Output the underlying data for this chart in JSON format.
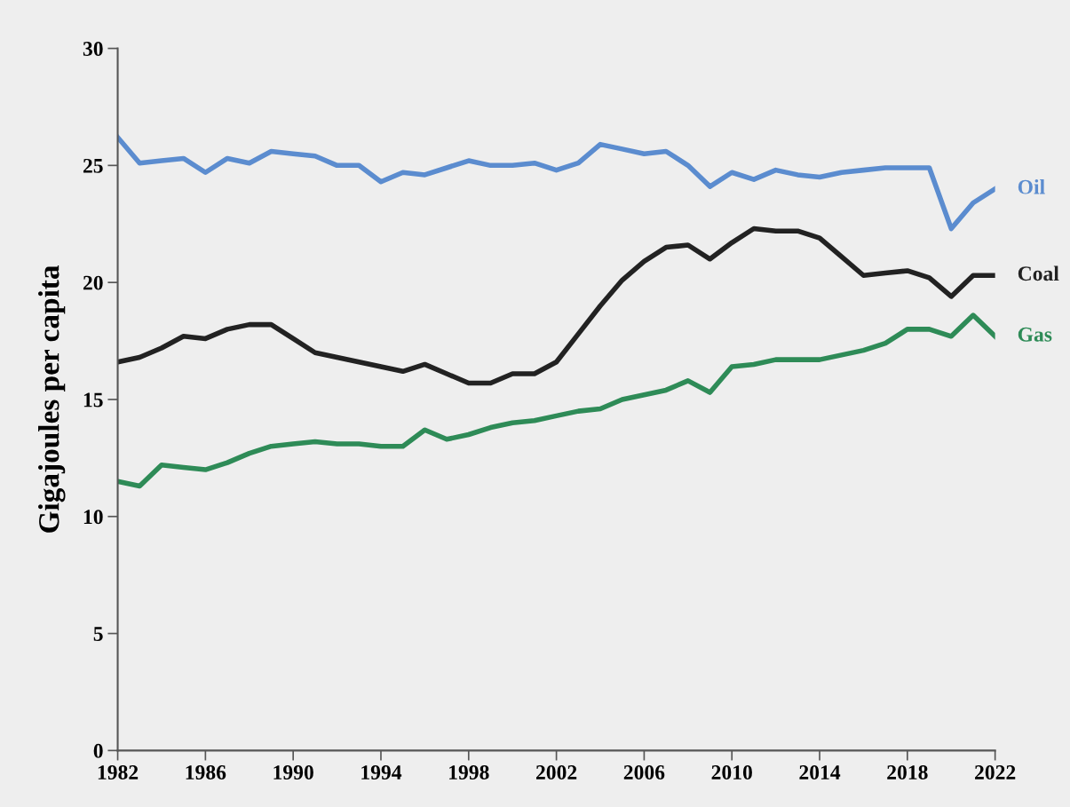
{
  "chart_data": {
    "type": "line",
    "ylabel": "Gigajoules per capita",
    "x": [
      1982,
      1983,
      1984,
      1985,
      1986,
      1987,
      1988,
      1989,
      1990,
      1991,
      1992,
      1993,
      1994,
      1995,
      1996,
      1997,
      1998,
      1999,
      2000,
      2001,
      2002,
      2003,
      2004,
      2005,
      2006,
      2007,
      2008,
      2009,
      2010,
      2011,
      2012,
      2013,
      2014,
      2015,
      2016,
      2017,
      2018,
      2019,
      2020,
      2021,
      2022
    ],
    "series": [
      {
        "name": "Oil",
        "color": "#5b8ccf",
        "values": [
          26.2,
          25.1,
          25.2,
          25.3,
          24.7,
          25.3,
          25.1,
          25.6,
          25.5,
          25.4,
          25.0,
          25.0,
          24.3,
          24.7,
          24.6,
          24.9,
          25.2,
          25.0,
          25.0,
          25.1,
          24.8,
          25.1,
          25.9,
          25.7,
          25.5,
          25.6,
          25.0,
          24.1,
          24.7,
          24.4,
          24.8,
          24.6,
          24.5,
          24.7,
          24.8,
          24.9,
          24.9,
          24.9,
          22.3,
          23.4,
          24.0
        ]
      },
      {
        "name": "Coal",
        "color": "#222222",
        "values": [
          16.6,
          16.8,
          17.2,
          17.7,
          17.6,
          18.0,
          18.2,
          18.2,
          17.6,
          17.0,
          16.8,
          16.6,
          16.4,
          16.2,
          16.5,
          16.1,
          15.7,
          15.7,
          16.1,
          16.1,
          16.6,
          17.8,
          19.0,
          20.1,
          20.9,
          21.5,
          21.6,
          21.0,
          21.7,
          22.3,
          22.2,
          22.2,
          21.9,
          21.1,
          20.3,
          20.4,
          20.5,
          20.2,
          19.4,
          20.3,
          20.3
        ]
      },
      {
        "name": "Gas",
        "color": "#2e8b57",
        "values": [
          11.5,
          11.3,
          12.2,
          12.1,
          12.0,
          12.3,
          12.7,
          13.0,
          13.1,
          13.2,
          13.1,
          13.1,
          13.0,
          13.0,
          13.7,
          13.3,
          13.5,
          13.8,
          14.0,
          14.1,
          14.3,
          14.5,
          14.6,
          15.0,
          15.2,
          15.4,
          15.8,
          15.3,
          16.4,
          16.5,
          16.7,
          16.7,
          16.7,
          16.9,
          17.1,
          17.4,
          18.0,
          18.0,
          17.7,
          18.6,
          17.7
        ]
      }
    ],
    "xlim": [
      1982,
      2022
    ],
    "xticks": [
      1982,
      1986,
      1990,
      1994,
      1998,
      2002,
      2006,
      2010,
      2014,
      2018,
      2022
    ],
    "ylim": [
      0,
      30
    ],
    "yticks": [
      0,
      5,
      10,
      15,
      20,
      25,
      30
    ],
    "grid": false,
    "legend": false,
    "marker": "none",
    "line_style": "solid"
  }
}
